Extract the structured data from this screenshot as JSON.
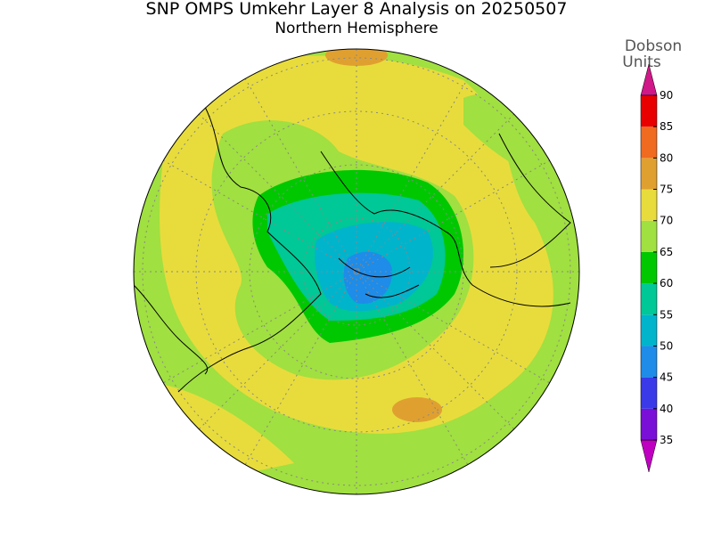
{
  "header": {
    "title": "SNP OMPS Umkehr Layer 8 Analysis on 20250507",
    "subtitle": "Northern Hemisphere"
  },
  "colorbar": {
    "label": [
      "Dobson",
      "Units"
    ],
    "ticks": [
      35,
      40,
      45,
      50,
      55,
      60,
      65,
      70,
      75,
      80,
      85,
      90
    ],
    "colors": [
      "#7a10d8",
      "#3a3ae8",
      "#1e8ce8",
      "#00b4cc",
      "#00c896",
      "#00c800",
      "#a0e040",
      "#e8dc3c",
      "#e0a030",
      "#f06a20",
      "#e80000"
    ],
    "under_color": "#c000c0",
    "over_color": "#d01888"
  }
}
